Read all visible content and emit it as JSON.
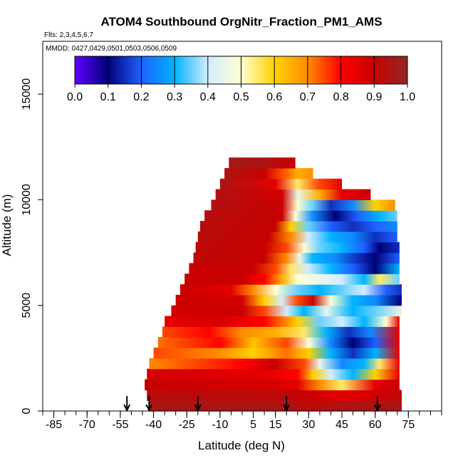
{
  "chart_data": {
    "type": "heatmap",
    "title": "ATOM4 Southbound OrgNitr_Fraction_PM1_AMS",
    "flights_label": "Flts: 2,3,4,5,6,7",
    "dates_label": "MMDD: 0427,0429,0501,0503,0506,0509",
    "xlabel": "Latitude (deg N)",
    "ylabel": "Altitude (m)",
    "xlim": [
      -90,
      90
    ],
    "ylim": [
      0,
      17500
    ],
    "x_ticks": [
      -85,
      -70,
      -55,
      -40,
      -25,
      -10,
      5,
      15,
      30,
      45,
      60,
      75
    ],
    "x_tick_labels": [
      "-85",
      "-70",
      "-55",
      "-40",
      "-25",
      "-10",
      "5",
      "15",
      "30",
      "45",
      "60",
      "75"
    ],
    "y_ticks": [
      0,
      5000,
      10000,
      15000
    ],
    "y_tick_labels": [
      "0",
      "5000",
      "10000",
      "15000"
    ],
    "colorbar": {
      "ticks": [
        0.0,
        0.1,
        0.2,
        0.3,
        0.4,
        0.5,
        0.6,
        0.7,
        0.8,
        0.9,
        1.0
      ],
      "tick_labels": [
        "0.0",
        "0.1",
        "0.2",
        "0.3",
        "0.4",
        "0.5",
        "0.6",
        "0.7",
        "0.8",
        "0.9",
        "1.0"
      ],
      "colors": [
        "#6000ff",
        "#00007a",
        "#1f60ff",
        "#00b4ff",
        "#d2ecff",
        "#ffffd2",
        "#ffd200",
        "#ff8c00",
        "#ff0000",
        "#c80000",
        "#902828"
      ]
    },
    "arrow_latitudes": [
      -52,
      -42,
      -20,
      20,
      61
    ],
    "layers": [
      {
        "alt_min": 0,
        "alt_max": 500,
        "lat_min": -42,
        "lat_max": 72,
        "lat": [
          -42,
          20,
          30,
          50,
          72
        ],
        "values": [
          0.95,
          0.95,
          0.92,
          0.95,
          0.95
        ]
      },
      {
        "alt_min": 500,
        "alt_max": 1000,
        "lat_min": -43,
        "lat_max": 72,
        "lat": [
          -43,
          20,
          30,
          45,
          60,
          72
        ],
        "values": [
          0.93,
          0.92,
          0.9,
          0.85,
          0.88,
          0.92
        ]
      },
      {
        "alt_min": 1000,
        "alt_max": 1500,
        "lat_min": -44,
        "lat_max": 71,
        "lat": [
          -44,
          10,
          25,
          35,
          45,
          60,
          71
        ],
        "values": [
          0.9,
          0.88,
          0.85,
          0.7,
          0.55,
          0.85,
          0.9
        ]
      },
      {
        "alt_min": 1500,
        "alt_max": 2000,
        "lat_min": -43,
        "lat_max": 71,
        "lat": [
          -43,
          10,
          25,
          32,
          40,
          50,
          60,
          71
        ],
        "values": [
          0.88,
          0.85,
          0.8,
          0.6,
          0.4,
          0.3,
          0.6,
          0.85
        ]
      },
      {
        "alt_min": 2000,
        "alt_max": 2500,
        "lat_min": -42,
        "lat_max": 71,
        "lat": [
          -42,
          0,
          15,
          28,
          35,
          45,
          55,
          62,
          71
        ],
        "values": [
          0.7,
          0.8,
          0.9,
          0.75,
          0.45,
          0.25,
          0.3,
          0.55,
          0.85
        ]
      },
      {
        "alt_min": 2500,
        "alt_max": 3000,
        "lat_min": -40,
        "lat_max": 71,
        "lat": [
          -40,
          -10,
          5,
          20,
          30,
          40,
          50,
          60,
          71
        ],
        "values": [
          0.75,
          0.7,
          0.6,
          0.72,
          0.6,
          0.3,
          0.15,
          0.3,
          0.85
        ]
      },
      {
        "alt_min": 3000,
        "alt_max": 3500,
        "lat_min": -38,
        "lat_max": 71,
        "lat": [
          -38,
          -10,
          5,
          20,
          30,
          40,
          50,
          60,
          71
        ],
        "values": [
          0.72,
          0.8,
          0.62,
          0.75,
          0.5,
          0.25,
          0.1,
          0.2,
          0.85
        ]
      },
      {
        "alt_min": 3500,
        "alt_max": 4000,
        "lat_min": -36,
        "lat_max": 71,
        "lat": [
          -36,
          -15,
          0,
          15,
          28,
          38,
          48,
          58,
          71
        ],
        "values": [
          0.75,
          0.8,
          0.7,
          0.65,
          0.55,
          0.3,
          0.15,
          0.25,
          0.85
        ]
      },
      {
        "alt_min": 4000,
        "alt_max": 4500,
        "lat_min": -35,
        "lat_max": 71,
        "lat": [
          -35,
          -10,
          10,
          25,
          35,
          45,
          55,
          65,
          71
        ],
        "values": [
          0.85,
          0.87,
          0.8,
          0.6,
          0.35,
          0.4,
          0.3,
          0.5,
          0.85
        ]
      },
      {
        "alt_min": 4500,
        "alt_max": 5000,
        "lat_min": -32,
        "lat_max": 72,
        "lat": [
          -32,
          0,
          10,
          20,
          28,
          38,
          50,
          60,
          72
        ],
        "values": [
          0.88,
          0.9,
          0.75,
          0.4,
          0.3,
          0.45,
          0.3,
          0.35,
          0.45
        ]
      },
      {
        "alt_min": 5000,
        "alt_max": 5500,
        "lat_min": -30,
        "lat_max": 72,
        "lat": [
          -30,
          0,
          10,
          18,
          25,
          32,
          40,
          50,
          60,
          72
        ],
        "values": [
          0.9,
          0.88,
          0.6,
          0.4,
          0.75,
          0.92,
          0.5,
          0.3,
          0.25,
          0.1
        ]
      },
      {
        "alt_min": 5500,
        "alt_max": 6000,
        "lat_min": -28,
        "lat_max": 72,
        "lat": [
          -28,
          -5,
          5,
          15,
          25,
          35,
          45,
          55,
          65,
          72
        ],
        "values": [
          0.9,
          0.85,
          0.7,
          0.5,
          0.35,
          0.3,
          0.35,
          0.4,
          0.2,
          0.15
        ]
      },
      {
        "alt_min": 6000,
        "alt_max": 6500,
        "lat_min": -26,
        "lat_max": 71,
        "lat": [
          -26,
          0,
          10,
          18,
          25,
          35,
          45,
          55,
          62,
          71
        ],
        "values": [
          0.9,
          0.9,
          0.8,
          0.65,
          0.5,
          0.45,
          0.4,
          0.3,
          0.55,
          0.35
        ]
      },
      {
        "alt_min": 6500,
        "alt_max": 7000,
        "lat_min": -24,
        "lat_max": 71,
        "lat": [
          -24,
          5,
          15,
          22,
          30,
          40,
          50,
          60,
          71
        ],
        "values": [
          0.9,
          0.9,
          0.75,
          0.55,
          0.4,
          0.3,
          0.2,
          0.1,
          0.3
        ]
      },
      {
        "alt_min": 7000,
        "alt_max": 7500,
        "lat_min": -22,
        "lat_max": 71,
        "lat": [
          -22,
          10,
          20,
          26,
          32,
          42,
          52,
          60,
          71
        ],
        "values": [
          0.92,
          0.9,
          0.7,
          0.45,
          0.3,
          0.25,
          0.15,
          0.1,
          0.2
        ]
      },
      {
        "alt_min": 7500,
        "alt_max": 8000,
        "lat_min": -21,
        "lat_max": 71,
        "lat": [
          -21,
          10,
          20,
          28,
          35,
          45,
          55,
          62,
          71
        ],
        "values": [
          0.92,
          0.9,
          0.75,
          0.5,
          0.35,
          0.3,
          0.2,
          0.1,
          0.15
        ]
      },
      {
        "alt_min": 8000,
        "alt_max": 8500,
        "lat_min": -20,
        "lat_max": 70,
        "lat": [
          -20,
          12,
          22,
          30,
          40,
          50,
          60,
          70
        ],
        "values": [
          0.93,
          0.9,
          0.7,
          0.4,
          0.3,
          0.25,
          0.15,
          0.2
        ]
      },
      {
        "alt_min": 8500,
        "alt_max": 9000,
        "lat_min": -19,
        "lat_max": 70,
        "lat": [
          -19,
          15,
          22,
          30,
          40,
          50,
          60,
          70
        ],
        "values": [
          0.93,
          0.9,
          0.6,
          0.35,
          0.2,
          0.15,
          0.2,
          0.25
        ]
      },
      {
        "alt_min": 9000,
        "alt_max": 9500,
        "lat_min": -17,
        "lat_max": 70,
        "lat": [
          -17,
          18,
          24,
          32,
          42,
          52,
          62,
          70
        ],
        "values": [
          0.93,
          0.9,
          0.5,
          0.25,
          0.1,
          0.2,
          0.3,
          0.35
        ]
      },
      {
        "alt_min": 9500,
        "alt_max": 10000,
        "lat_min": -14,
        "lat_max": 69,
        "lat": [
          -14,
          18,
          25,
          32,
          40,
          50,
          60,
          69
        ],
        "values": [
          0.94,
          0.9,
          0.5,
          0.35,
          0.15,
          0.25,
          0.6,
          0.7
        ]
      },
      {
        "alt_min": 10000,
        "alt_max": 10500,
        "lat_min": -12,
        "lat_max": 58,
        "lat": [
          -12,
          18,
          25,
          35,
          45,
          58
        ],
        "values": [
          0.94,
          0.88,
          0.45,
          0.65,
          0.85,
          0.9
        ]
      },
      {
        "alt_min": 10500,
        "alt_max": 11000,
        "lat_min": -10,
        "lat_max": 45,
        "lat": [
          -10,
          15,
          25,
          35,
          45
        ],
        "values": [
          0.95,
          0.85,
          0.55,
          0.75,
          0.85
        ]
      },
      {
        "alt_min": 11000,
        "alt_max": 11500,
        "lat_min": -8,
        "lat_max": 32,
        "lat": [
          -8,
          10,
          18,
          25,
          32
        ],
        "values": [
          0.95,
          0.9,
          0.75,
          0.65,
          0.7
        ]
      },
      {
        "alt_min": 11500,
        "alt_max": 12000,
        "lat_min": -6,
        "lat_max": 24,
        "lat": [
          -6,
          10,
          18,
          24
        ],
        "values": [
          0.96,
          0.95,
          0.92,
          0.9
        ]
      }
    ]
  }
}
